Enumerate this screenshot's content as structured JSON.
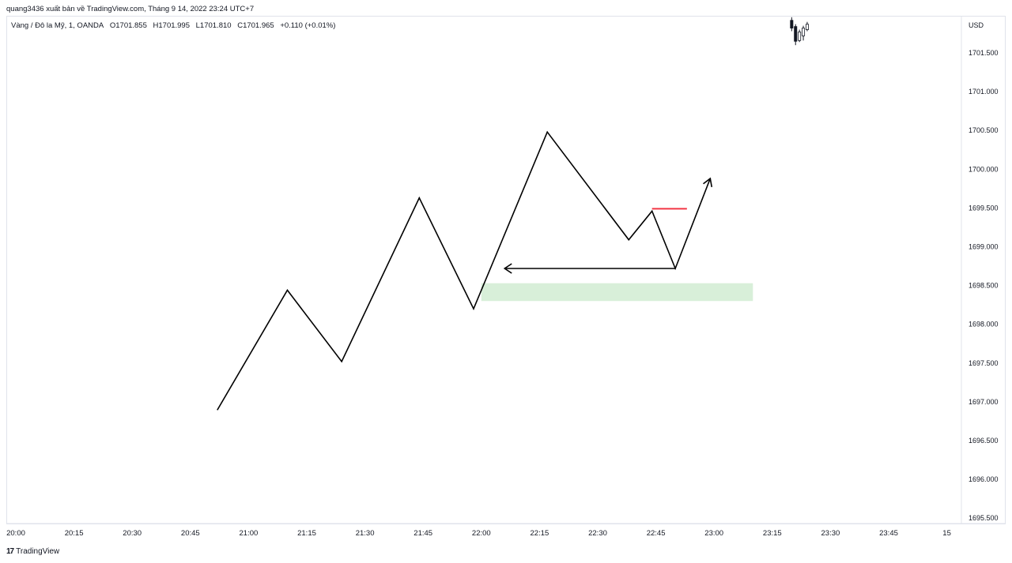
{
  "header": {
    "publisher_line": "quang3436 xuất bản về TradingView.com, Tháng 9 14, 2022 23:24 UTC+7",
    "symbol": "Vàng / Đô la Mỹ, 1, OANDA",
    "open": "O1701.855",
    "high": "H1701.995",
    "low": "L1701.810",
    "close": "C1701.965",
    "change": "+0.110 (+0.01%)"
  },
  "footer": {
    "brand": "TradingView",
    "logo": "17"
  },
  "colors": {
    "line": "#000000",
    "red_level": "#f23645",
    "zone_fill": "#d8efd9",
    "grid_border": "#e0e3eb",
    "candle_up": "#ffffff",
    "candle_down": "#131722"
  },
  "chart_data": {
    "type": "line",
    "currency": "USD",
    "y_ticks": [
      "1701.500",
      "1701.000",
      "1700.500",
      "1700.000",
      "1699.500",
      "1699.000",
      "1698.500",
      "1698.000",
      "1697.500",
      "1697.000",
      "1696.500",
      "1696.000",
      "1695.500"
    ],
    "x_ticks": [
      "20:00",
      "20:15",
      "20:30",
      "20:45",
      "21:00",
      "21:15",
      "21:30",
      "21:45",
      "22:00",
      "22:15",
      "22:30",
      "22:45",
      "23:00",
      "23:15",
      "23:30",
      "23:45",
      "15"
    ],
    "ylim": [
      1695.45,
      1701.85
    ],
    "grid": false,
    "series": [
      {
        "x": [
          "20:52",
          "21:10",
          "21:24",
          "21:44",
          "21:58",
          "22:17",
          "22:38",
          "22:44",
          "22:50",
          "22:59"
        ],
        "y": [
          1696.9,
          1698.44,
          1697.52,
          1699.63,
          1698.2,
          1700.48,
          1699.09,
          1699.46,
          1698.72,
          1699.88
        ]
      }
    ],
    "horizontal_arrow": {
      "x_start": "22:50",
      "x_end": "22:06",
      "y": 1698.72
    },
    "red_level": {
      "x_start": "22:44",
      "x_end": "22:53",
      "y": 1699.49
    },
    "zone": {
      "x_start": "22:00",
      "x_end": "23:10",
      "y_top": 1698.53,
      "y_bottom": 1698.3
    },
    "candles": [
      {
        "x": "23:20",
        "open": 1701.92,
        "high": 1701.96,
        "low": 1701.78,
        "close": 1701.82
      },
      {
        "x": "23:21",
        "open": 1701.84,
        "high": 1701.87,
        "low": 1701.6,
        "close": 1701.65
      },
      {
        "x": "23:22",
        "open": 1701.66,
        "high": 1701.8,
        "low": 1701.64,
        "close": 1701.77
      },
      {
        "x": "23:23",
        "open": 1701.72,
        "high": 1701.85,
        "low": 1701.66,
        "close": 1701.82
      },
      {
        "x": "23:24",
        "open": 1701.8,
        "high": 1701.9,
        "low": 1701.78,
        "close": 1701.87
      }
    ]
  }
}
